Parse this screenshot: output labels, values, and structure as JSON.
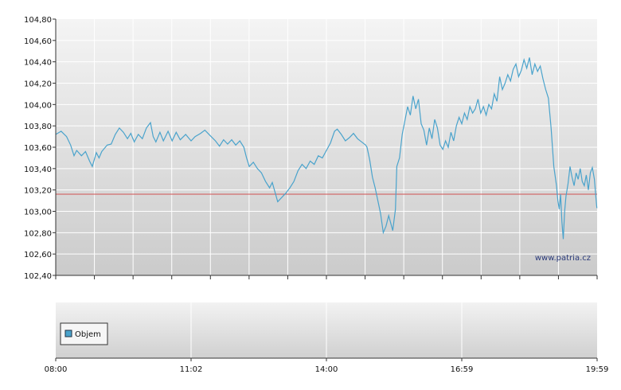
{
  "chart_data": [
    {
      "type": "line",
      "title": "",
      "xlabel": "",
      "ylabel": "",
      "ylim": [
        102.4,
        104.8
      ],
      "y_ticks": [
        "104,80",
        "104,60",
        "104,40",
        "104,20",
        "104,00",
        "103,80",
        "103,60",
        "103,40",
        "103,20",
        "103,00",
        "102,80",
        "102,60",
        "102,40"
      ],
      "x_ticks": [
        "08:00",
        "11:02",
        "14:00",
        "16:59",
        "19:59"
      ],
      "grid": true,
      "line_color": "#4aa3cc",
      "reference_line": {
        "value": 103.16,
        "color": "#d05050"
      },
      "watermark": "www.patria.cz",
      "series": [
        {
          "values": [
            [
              0.0,
              103.72
            ],
            [
              0.4,
              103.75
            ],
            [
              0.8,
              103.7
            ],
            [
              1.1,
              103.62
            ],
            [
              1.35,
              103.52
            ],
            [
              1.55,
              103.57
            ],
            [
              1.9,
              103.52
            ],
            [
              2.2,
              103.56
            ],
            [
              2.5,
              103.47
            ],
            [
              2.7,
              103.42
            ],
            [
              3.0,
              103.55
            ],
            [
              3.2,
              103.5
            ],
            [
              3.4,
              103.56
            ],
            [
              3.8,
              103.62
            ],
            [
              4.1,
              103.63
            ],
            [
              4.4,
              103.72
            ],
            [
              4.7,
              103.78
            ],
            [
              5.0,
              103.74
            ],
            [
              5.3,
              103.68
            ],
            [
              5.55,
              103.73
            ],
            [
              5.8,
              103.65
            ],
            [
              6.1,
              103.72
            ],
            [
              6.4,
              103.68
            ],
            [
              6.7,
              103.78
            ],
            [
              7.0,
              103.83
            ],
            [
              7.2,
              103.7
            ],
            [
              7.4,
              103.65
            ],
            [
              7.7,
              103.74
            ],
            [
              7.95,
              103.66
            ],
            [
              8.3,
              103.75
            ],
            [
              8.6,
              103.66
            ],
            [
              8.9,
              103.74
            ],
            [
              9.2,
              103.67
            ],
            [
              9.6,
              103.72
            ],
            [
              10.0,
              103.66
            ],
            [
              10.3,
              103.7
            ],
            [
              10.7,
              103.73
            ],
            [
              11.02,
              103.76
            ],
            [
              11.4,
              103.71
            ],
            [
              11.8,
              103.66
            ],
            [
              12.1,
              103.61
            ],
            [
              12.4,
              103.67
            ],
            [
              12.7,
              103.63
            ],
            [
              13.0,
              103.67
            ],
            [
              13.3,
              103.62
            ],
            [
              13.6,
              103.66
            ],
            [
              13.9,
              103.6
            ],
            [
              14.1,
              103.5
            ],
            [
              14.3,
              103.42
            ],
            [
              14.6,
              103.46
            ],
            [
              14.9,
              103.4
            ],
            [
              15.2,
              103.36
            ],
            [
              15.5,
              103.28
            ],
            [
              15.8,
              103.22
            ],
            [
              16.0,
              103.27
            ],
            [
              16.2,
              103.18
            ],
            [
              16.4,
              103.09
            ],
            [
              16.7,
              103.13
            ],
            [
              17.0,
              103.17
            ],
            [
              17.3,
              103.22
            ],
            [
              17.6,
              103.28
            ],
            [
              17.9,
              103.38
            ],
            [
              18.2,
              103.44
            ],
            [
              18.5,
              103.4
            ],
            [
              18.8,
              103.47
            ],
            [
              19.1,
              103.44
            ],
            [
              19.4,
              103.52
            ],
            [
              19.7,
              103.5
            ],
            [
              20.0,
              103.57
            ],
            [
              20.3,
              103.64
            ],
            [
              20.6,
              103.75
            ],
            [
              20.8,
              103.77
            ],
            [
              21.1,
              103.72
            ],
            [
              21.4,
              103.66
            ],
            [
              21.7,
              103.69
            ],
            [
              22.0,
              103.73
            ],
            [
              22.3,
              103.68
            ],
            [
              22.6,
              103.65
            ],
            [
              22.9,
              103.62
            ],
            [
              23.0,
              103.6
            ],
            [
              23.2,
              103.48
            ],
            [
              23.4,
              103.32
            ],
            [
              23.6,
              103.22
            ],
            [
              23.8,
              103.1
            ],
            [
              24.0,
              102.98
            ],
            [
              24.2,
              102.8
            ],
            [
              24.4,
              102.86
            ],
            [
              24.6,
              102.96
            ],
            [
              24.9,
              102.82
            ],
            [
              25.1,
              103.02
            ],
            [
              25.2,
              103.42
            ],
            [
              25.4,
              103.5
            ],
            [
              25.6,
              103.72
            ],
            [
              25.8,
              103.85
            ],
            [
              26.0,
              103.98
            ],
            [
              26.2,
              103.9
            ],
            [
              26.4,
              104.08
            ],
            [
              26.6,
              103.96
            ],
            [
              26.8,
              104.05
            ],
            [
              27.0,
              103.82
            ],
            [
              27.2,
              103.76
            ],
            [
              27.4,
              103.62
            ],
            [
              27.6,
              103.78
            ],
            [
              27.8,
              103.68
            ],
            [
              28.0,
              103.86
            ],
            [
              28.2,
              103.78
            ],
            [
              28.4,
              103.62
            ],
            [
              28.6,
              103.58
            ],
            [
              28.8,
              103.66
            ],
            [
              29.0,
              103.6
            ],
            [
              29.2,
              103.74
            ],
            [
              29.4,
              103.66
            ],
            [
              29.6,
              103.8
            ],
            [
              29.8,
              103.88
            ],
            [
              30.0,
              103.82
            ],
            [
              30.2,
              103.92
            ],
            [
              30.4,
              103.86
            ],
            [
              30.6,
              103.98
            ],
            [
              30.8,
              103.92
            ],
            [
              31.0,
              103.96
            ],
            [
              31.2,
              104.05
            ],
            [
              31.4,
              103.92
            ],
            [
              31.6,
              103.98
            ],
            [
              31.8,
              103.9
            ],
            [
              32.0,
              104.0
            ],
            [
              32.2,
              103.96
            ],
            [
              32.4,
              104.1
            ],
            [
              32.6,
              104.03
            ],
            [
              32.8,
              104.26
            ],
            [
              33.0,
              104.14
            ],
            [
              33.2,
              104.2
            ],
            [
              33.4,
              104.28
            ],
            [
              33.6,
              104.22
            ],
            [
              33.8,
              104.33
            ],
            [
              34.0,
              104.38
            ],
            [
              34.2,
              104.26
            ],
            [
              34.4,
              104.32
            ],
            [
              34.6,
              104.42
            ],
            [
              34.8,
              104.34
            ],
            [
              35.0,
              104.44
            ],
            [
              35.2,
              104.28
            ],
            [
              35.4,
              104.38
            ],
            [
              35.6,
              104.31
            ],
            [
              35.8,
              104.36
            ],
            [
              36.0,
              104.24
            ],
            [
              36.2,
              104.14
            ],
            [
              36.4,
              104.06
            ],
            [
              36.6,
              103.78
            ],
            [
              36.8,
              103.42
            ],
            [
              37.0,
              103.24
            ],
            [
              37.1,
              103.1
            ],
            [
              37.2,
              103.02
            ],
            [
              37.3,
              103.16
            ],
            [
              37.4,
              102.9
            ],
            [
              37.5,
              102.74
            ],
            [
              37.6,
              103.0
            ],
            [
              37.7,
              103.14
            ],
            [
              37.85,
              103.26
            ],
            [
              38.0,
              103.42
            ],
            [
              38.15,
              103.32
            ],
            [
              38.3,
              103.24
            ],
            [
              38.45,
              103.36
            ],
            [
              38.6,
              103.3
            ],
            [
              38.75,
              103.4
            ],
            [
              38.9,
              103.28
            ],
            [
              39.05,
              103.24
            ],
            [
              39.2,
              103.34
            ],
            [
              39.35,
              103.2
            ],
            [
              39.5,
              103.36
            ],
            [
              39.65,
              103.41
            ],
            [
              39.8,
              103.3
            ],
            [
              39.92,
              103.12
            ],
            [
              39.98,
              103.03
            ]
          ]
        }
      ]
    },
    {
      "type": "bar",
      "title": "",
      "legend": [
        "Objem"
      ],
      "legend_color": "#4aa3cc",
      "x_ticks": [
        "08:00",
        "11:02",
        "14:00",
        "16:59",
        "19:59"
      ],
      "values": []
    }
  ]
}
